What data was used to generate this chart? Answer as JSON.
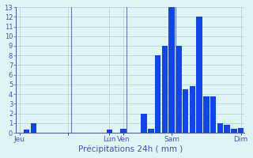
{
  "title": "Précipitations 24h ( mm )",
  "bar_color": "#1144ee",
  "bg_color": "#dff5f5",
  "grid_color": "#aacece",
  "axis_label_color": "#4455aa",
  "tick_label_color": "#4455aa",
  "spine_color": "#4455aa",
  "ylim": [
    0,
    13
  ],
  "yticks": [
    0,
    1,
    2,
    3,
    4,
    5,
    6,
    7,
    8,
    9,
    10,
    11,
    12,
    13
  ],
  "values": [
    0,
    0.3,
    1.0,
    0,
    0,
    0,
    0,
    0,
    0,
    0,
    0,
    0,
    0,
    0.3,
    0,
    0.4,
    0,
    0,
    2.0,
    0.4,
    8.0,
    9.0,
    13.0,
    9.0,
    4.5,
    4.8,
    12.0,
    3.8,
    3.8,
    1.0,
    0.8,
    0.4,
    0.5
  ],
  "n_bars": 33,
  "xtick_positions": [
    0,
    7,
    13,
    15,
    22,
    32
  ],
  "xtick_labels": [
    "Jeu",
    "",
    "Lun",
    "Ven",
    "Sam",
    "Dim"
  ],
  "vline_positions": [
    7.5,
    15.5,
    22.5
  ],
  "vline_color": "#6677aa",
  "xlabel_fontsize": 7.5,
  "ylabel_fontsize": 6,
  "xtick_fontsize": 6.5,
  "figsize": [
    3.2,
    2.0
  ],
  "dpi": 100
}
